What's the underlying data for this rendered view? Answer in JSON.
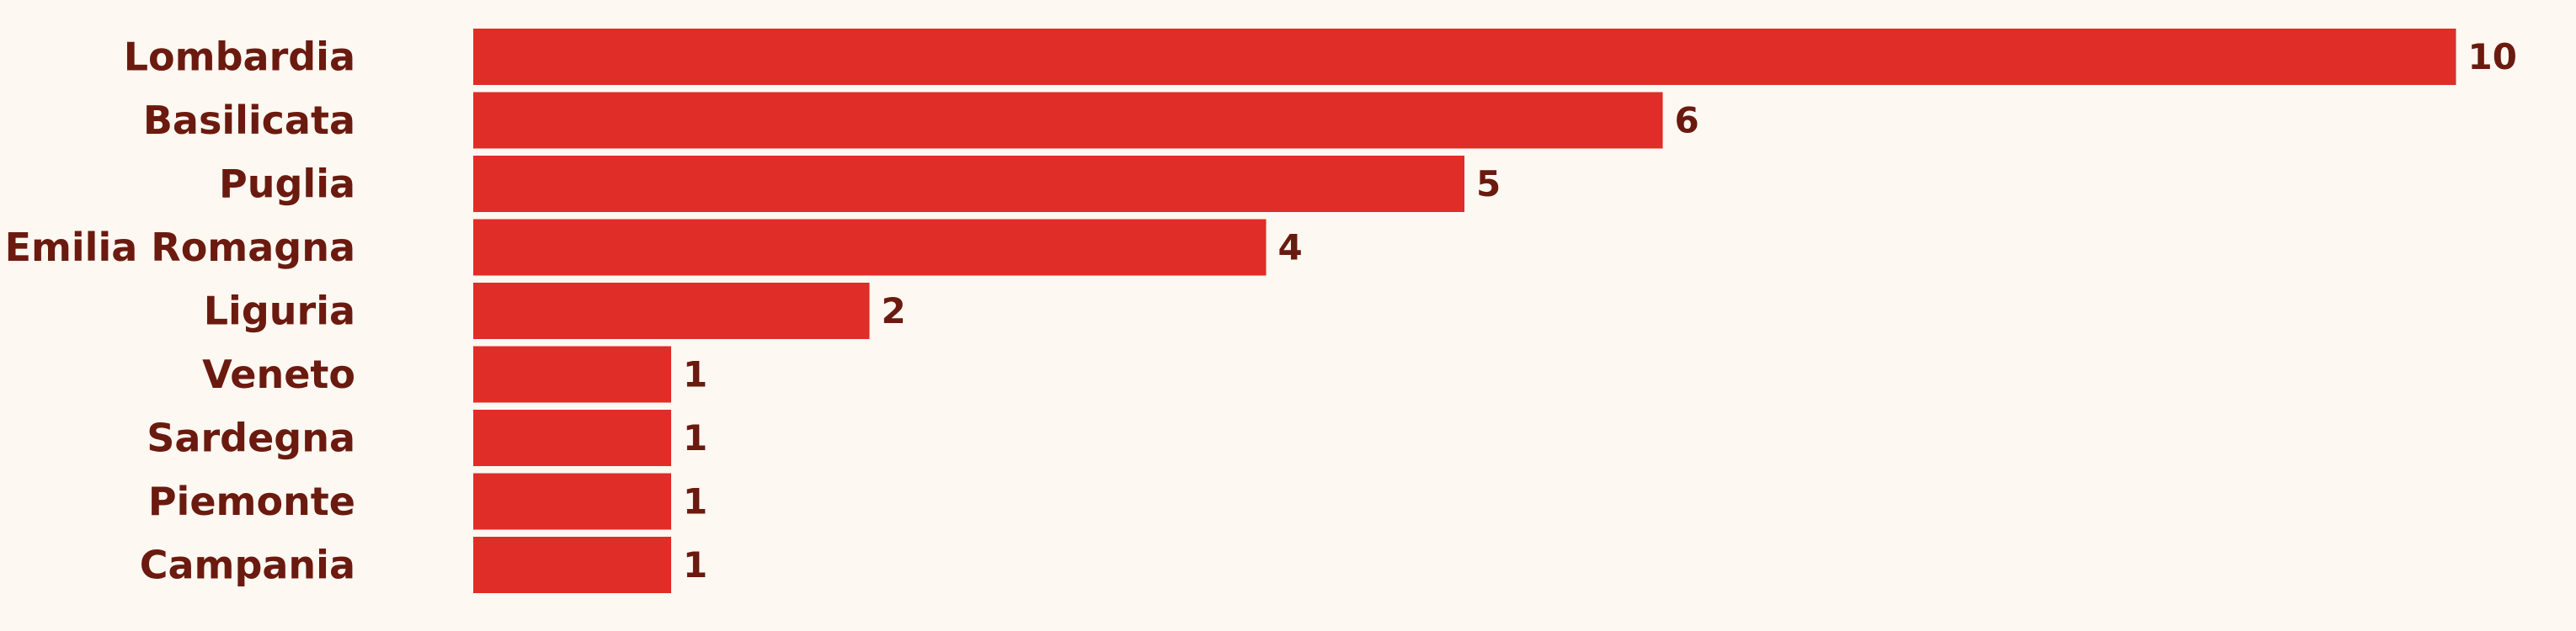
{
  "chart_data": {
    "type": "bar",
    "orientation": "horizontal",
    "categories": [
      "Lombardia",
      "Basilicata",
      "Puglia",
      "Emilia Romagna",
      "Liguria",
      "Veneto",
      "Sardegna",
      "Piemonte",
      "Campania"
    ],
    "values": [
      10,
      6,
      5,
      4,
      2,
      1,
      1,
      1,
      1
    ],
    "value_labels": [
      "10",
      "6",
      "5",
      "4",
      "2",
      "1",
      "1",
      "1",
      "1"
    ],
    "xlim": [
      0,
      10
    ],
    "grid": false,
    "legend": "none",
    "colors": {
      "bar": "#e02d27",
      "text": "#6b1a10",
      "background": "#fdf8f1"
    }
  }
}
